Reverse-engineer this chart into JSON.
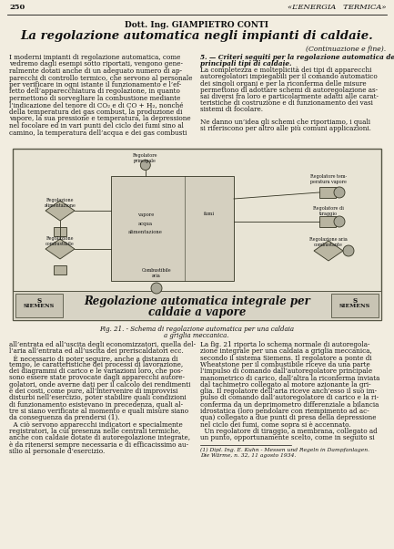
{
  "page_number": "250",
  "journal_name": "«L’ENERGIA   TERMICA»",
  "author": "Dott. Ing. GIAMPIETRO CONTI",
  "title": "La regolazione automatica negli impianti di caldaie.",
  "subtitle": "(Continuazione e fine).",
  "col1_text": [
    "I moderni impianti di regolazione automatica, come",
    "vedremo dagli esempi sotto riportati, vengono gene-",
    "ralmente dotati anche di un adeguato numero di ap-",
    "parecchi di controllo termico, che servono al personale",
    "per verificare in ogni istante il funzionamento e l’ef-",
    "fetto dell’apparecchiatura di regolazione, in quanto",
    "permettono di sorvegliare la combustione mediante",
    "l’indicazione del tenore di CO₂ e di CO + H₂, nonché",
    "della temperatura dei gas combust, la produzione di",
    "vapore, la sua pressione e temperatura, la depressione",
    "nel focolare ed in vari punti del ciclo dei fumi sino al",
    "camino, la temperatura dell’acqua e dei gas combusti"
  ],
  "col2_header": "5. — Criteri seguiti per la regolazione automatica dei",
  "col2_header2": "principali tipi di caldaie.",
  "col2_text": [
    "La completezza e molteplicità dei tipi di apparecchi",
    "autoregolatori impiegabili per il comando automatico",
    "dei singoli organi e per la riconferma delle misure",
    "permettono di adottare schemi di autoregolazione as-",
    "sai diversi fra loro e particolarmente adatti alle carat-",
    "teristiche di costruzione e di funzionamento dei vasi",
    "sistemi di focolare.",
    "",
    "Ne danno un’idea gli schemi che riportiamo, i quali",
    "si riferiscono per altro alle più comuni applicazioni."
  ],
  "fig_caption": "Fig. 21. - Schema di regolazione automatica per una caldaia",
  "fig_caption2": "a griglia meccanica.",
  "diagram_label": "Regolazione automatica integrale per",
  "diagram_label2": "caldaie a vapore",
  "siemens_label": "SIEMENS",
  "body_text1": [
    "all’entrata ed all’uscita degli economizzatori, quella del-",
    "l’aria all’entrata ed all’uscita dei preriscaldatori ecc.",
    "  È necessario di poter seguire, anche a distanza di",
    "tempo, le caratteristiche dei processi di lavorazione,",
    "dei diagrammi di carico e le variazioni loro, che pos-",
    "sono essere state provocate dagli apparecchi autore-",
    "golatori, onde averne dati per il calcolo dei rendimenti",
    "e dei costi, come pure, all’intervenire di improvvisi",
    "disturbi nell’esercizio, poter stabilire quali condizioni",
    "di funzionamento esistevano in precedenza, quali al-",
    "tre si siano verificate al momento e quali misure siano",
    "da conseguenza da prendersi (1).",
    "  A ciò servono apparecchi indicatori e specialmente",
    "registratori, la cui presenza nelle centrali termiche,",
    "anche con caldaie dotate di autoregolazione integrate,",
    "è da ritenersi sempre necessaria e di efficacissimo au-",
    "silio al personale d’esercizio."
  ],
  "body_text2": [
    "La fig. 21 riporta lo schema normale di autoregola-",
    "zione integrale per una caldaia a griglia meccanica,",
    "secondo il sistema Siemens. Il regolatore a ponte di",
    "Wheatstone per il combustibile riceve da una parte",
    "l’impulso di comando dall’autoregolatore principale",
    "manometrico di carico, dall’altra la riconferma inviata",
    "dal tachimetro collegato al motore azionante la gri-",
    "glia. Il regolatore dell’aria riceve anch’esso il suo im-",
    "pulso di comando dall’autoregolatore di carico e la ri-",
    "conferma da un deprimometro differenziale a bilancia",
    "idrostatica (loro pendolare con riempimento ad ac-",
    "qua) collegato a due punti di presa della depressione",
    "nel ciclo dei fumi, come sopra si è accennato.",
    "  Un regolatore di tiraggio, a membrana, collegato ad",
    "un punto, opportunamente scelto, come in seguito si"
  ],
  "footnote": "(1) Dipl. Ing. E. Kuhn - Messen und Regeln in Dampfanlagen.",
  "footnote2": "Die Wärme, n. 32, 11 agosto 1934.",
  "bg_color": "#f2ede0",
  "text_color": "#111111",
  "diagram_bg": "#e0dbd0"
}
